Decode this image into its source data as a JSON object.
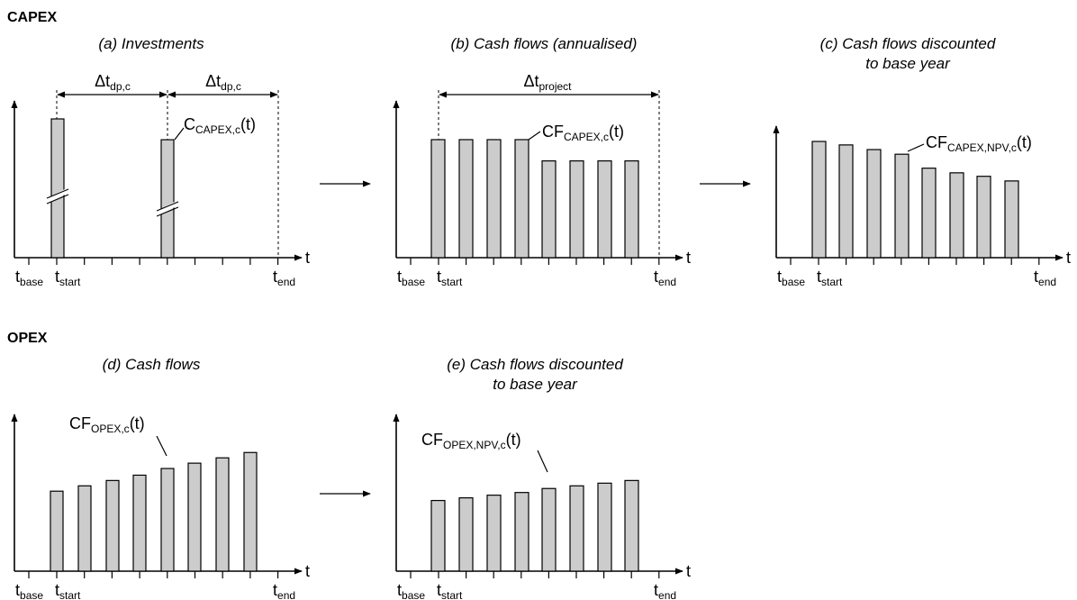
{
  "sections": {
    "capex": "CAPEX",
    "opex": "OPEX"
  },
  "axis_labels": {
    "t": "t",
    "t_base": {
      "main": "t",
      "sub": "base"
    },
    "t_start": {
      "main": "t",
      "sub": "start"
    },
    "t_end": {
      "main": "t",
      "sub": "end"
    }
  },
  "panels": {
    "a": {
      "title": "(a) Investments",
      "span_dt": {
        "main": "Δt",
        "sub": "dp,c"
      },
      "label": {
        "main": "C",
        "sub": "CAPEX,c",
        "tail": "(t)"
      }
    },
    "b": {
      "title": "(b) Cash flows (annualised)",
      "span_dt": {
        "main": "Δt",
        "sub": "project"
      },
      "label": {
        "main": "CF",
        "sub": "CAPEX,c",
        "tail": "(t)"
      }
    },
    "c": {
      "title_line1": "(c) Cash flows discounted",
      "title_line2": "to base year",
      "label": {
        "main": "CF",
        "sub": "CAPEX,NPV,c",
        "tail": "(t)"
      }
    },
    "d": {
      "title": "(d) Cash flows",
      "label": {
        "main": "CF",
        "sub": "OPEX,c",
        "tail": "(t)"
      }
    },
    "e": {
      "title_line1": "(e) Cash flows discounted",
      "title_line2": "to base year",
      "label": {
        "main": "CF",
        "sub": "OPEX,NPV,c",
        "tail": "(t)"
      }
    }
  },
  "bar_levels": {
    "a": [
      1.0,
      0.85
    ],
    "b": [
      1.0,
      1.0,
      1.0,
      1.0,
      0.82,
      0.82,
      0.82,
      0.82
    ],
    "c": [
      1.0,
      0.97,
      0.93,
      0.89,
      0.77,
      0.73,
      0.7,
      0.66
    ],
    "d": [
      0.6,
      0.64,
      0.68,
      0.72,
      0.77,
      0.81,
      0.85,
      0.89
    ],
    "e": [
      0.53,
      0.55,
      0.57,
      0.59,
      0.62,
      0.64,
      0.66,
      0.68
    ]
  }
}
